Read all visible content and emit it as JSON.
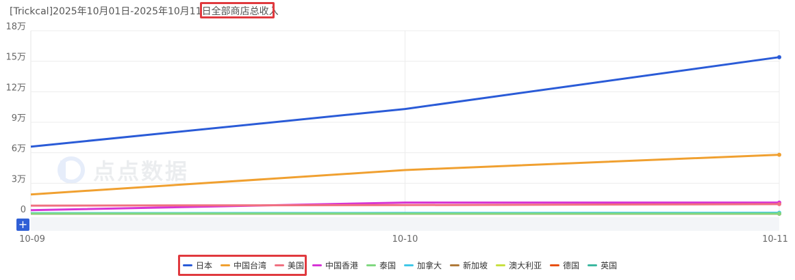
{
  "title": {
    "app_and_date": "[Trickcal]2025年10月01日-2025年10月11日",
    "metric": "全部商店总收入"
  },
  "watermark": {
    "text": "点点数据"
  },
  "zoom_button_label": "+",
  "chart_data": {
    "type": "line",
    "categories": [
      "10-09",
      "10-10",
      "10-11"
    ],
    "y_ticks": [
      {
        "value": 0,
        "label": "0"
      },
      {
        "value": 30000,
        "label": "3万"
      },
      {
        "value": 60000,
        "label": "6万"
      },
      {
        "value": 90000,
        "label": "9万"
      },
      {
        "value": 120000,
        "label": "12万"
      },
      {
        "value": 150000,
        "label": "15万"
      },
      {
        "value": 180000,
        "label": "18万"
      }
    ],
    "ylim": [
      0,
      180000
    ],
    "grid": true,
    "legend_position": "bottom",
    "series": [
      {
        "name": "日本",
        "color": "#2a5bd7",
        "values": [
          66000,
          103000,
          154000
        ]
      },
      {
        "name": "中国台湾",
        "color": "#f0a030",
        "values": [
          19000,
          43000,
          58000
        ]
      },
      {
        "name": "美国",
        "color": "#f07080",
        "values": [
          8000,
          8500,
          9500
        ]
      },
      {
        "name": "中国香港",
        "color": "#d633d6",
        "values": [
          3500,
          11000,
          11000
        ]
      },
      {
        "name": "泰国",
        "color": "#80d880",
        "values": [
          200,
          200,
          200
        ]
      },
      {
        "name": "加拿大",
        "color": "#40c8e8",
        "values": [
          600,
          800,
          1000
        ]
      },
      {
        "name": "新加坡",
        "color": "#b07a3a",
        "values": [
          100,
          100,
          150
        ]
      },
      {
        "name": "澳大利亚",
        "color": "#c8e040",
        "values": [
          300,
          300,
          300
        ]
      },
      {
        "name": "德国",
        "color": "#e85010",
        "values": [
          50,
          50,
          60
        ]
      },
      {
        "name": "英国",
        "color": "#3cb8a0",
        "values": [
          400,
          200,
          100
        ]
      }
    ]
  }
}
